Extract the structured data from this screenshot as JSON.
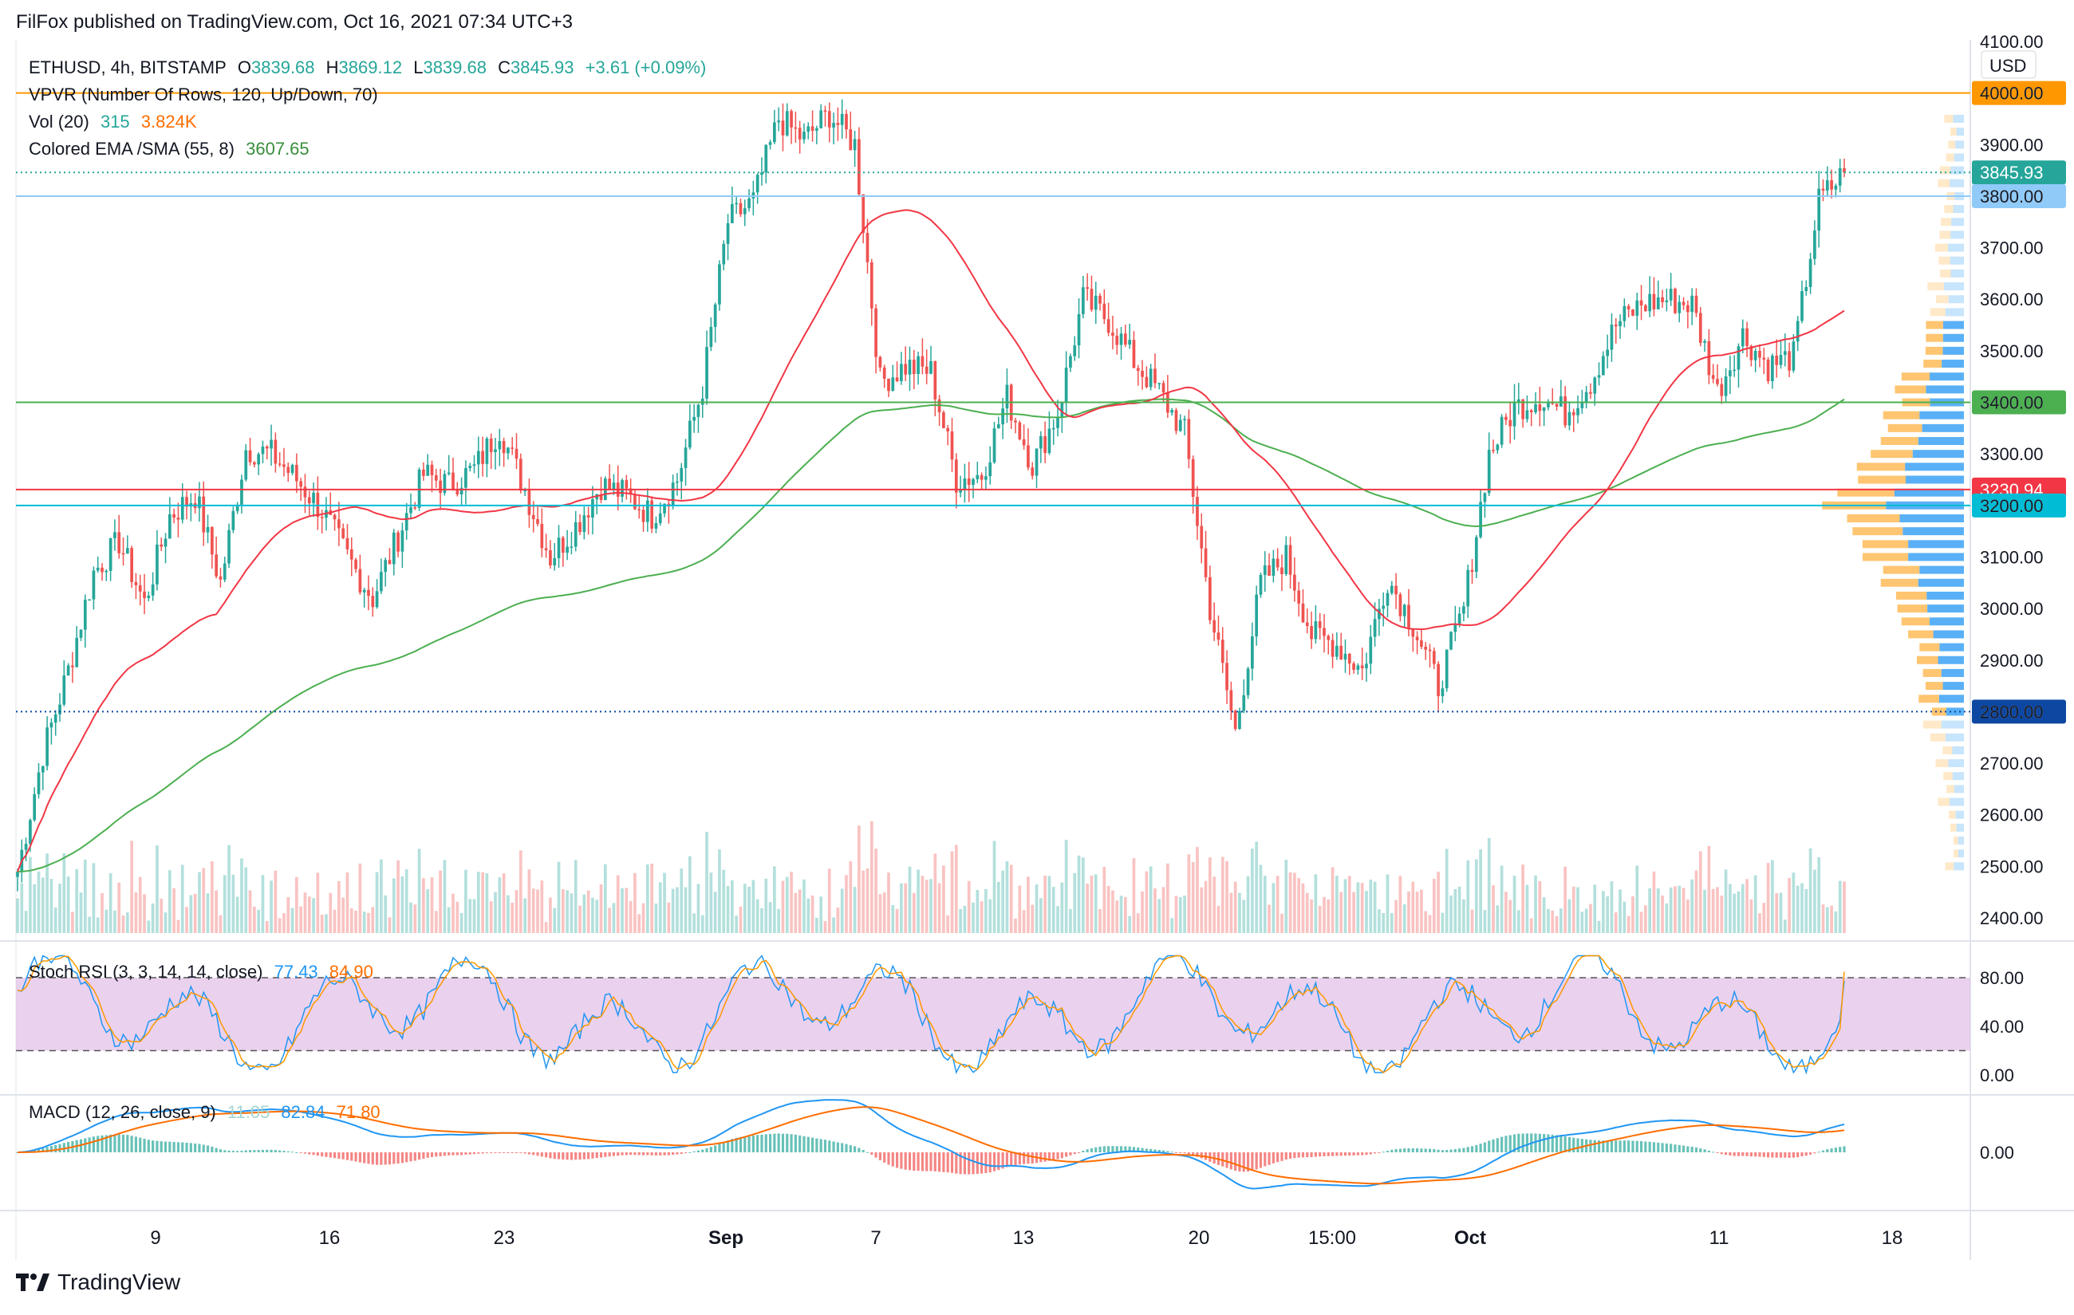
{
  "header": {
    "publisher": "FilFox published on TradingView.com, Oct 16, 2021 07:34 UTC+3"
  },
  "footer": {
    "brand": "TradingView",
    "logo_icon": "tradingview-logo-icon"
  },
  "currency": "USD",
  "colors": {
    "up": "#26a69a",
    "down": "#ef5350",
    "ema": "#f23645",
    "sma": "#4caf50",
    "stoch_k": "#2196f3",
    "stoch_d": "#ff9800",
    "stoch_band": "#e1bee7",
    "macd": "#2196f3",
    "signal": "#ff6d00",
    "level_4000": "#ff9800",
    "level_3800": "#90caf9",
    "level_3400": "#4caf50",
    "level_3230": "#f23645",
    "level_3200": "#00bcd4",
    "level_2800": "#0d47a1",
    "vpvr_up": "#2196f3",
    "vpvr_down": "#ffb74d"
  },
  "legend": {
    "symbol": "ETHUSD, 4h, BITSTAMP",
    "o_label": "O",
    "o_value": "3839.68",
    "h_label": "H",
    "h_value": "3869.12",
    "l_label": "L",
    "l_value": "3839.68",
    "c_label": "C",
    "c_value": "3845.93",
    "change": "+3.61 (+0.09%)",
    "vpvr": "VPVR (Number Of Rows, 120, Up/Down, 70)",
    "vol_label": "Vol (20)",
    "vol_value": "315",
    "vol_ma": "3.824K",
    "ema_label": "Colored EMA /SMA (55, 8)",
    "ema_value": "3607.65",
    "stoch_label": "Stoch RSI (3, 3, 14, 14, close)",
    "stoch_k": "77.43",
    "stoch_d": "84.90",
    "macd_label": "MACD (12, 26, close, 9)",
    "macd_hist": "11.05",
    "macd_value": "82.84",
    "macd_signal": "71.80"
  },
  "chart_data": [
    {
      "type": "candlestick",
      "title": "ETHUSD, 4h, BITSTAMP",
      "ylim": [
        2350,
        4100
      ],
      "y_ticks": [
        "4100.00",
        "4000.00",
        "3900.00",
        "3800.00",
        "3700.00",
        "3600.00",
        "3500.00",
        "3400.00",
        "3300.00",
        "3200.00",
        "3100.00",
        "3000.00",
        "2900.00",
        "2800.00",
        "2700.00",
        "2600.00",
        "2500.00",
        "2400.00"
      ],
      "x_ticks": [
        "9",
        "16",
        "23",
        "Sep",
        "7",
        "13",
        "20",
        "15:00",
        "Oct",
        "11",
        "18"
      ],
      "price_anchors": [
        [
          "Aug 4",
          2490
        ],
        [
          "Aug 5",
          2720
        ],
        [
          "Aug 6",
          2880
        ],
        [
          "Aug 7",
          3070
        ],
        [
          "Aug 8",
          3130
        ],
        [
          "Aug 9",
          3010
        ],
        [
          "Aug 10",
          3180
        ],
        [
          "Aug 11",
          3220
        ],
        [
          "Aug 12",
          3050
        ],
        [
          "Aug 13",
          3310
        ],
        [
          "Aug 14",
          3300
        ],
        [
          "Aug 15",
          3250
        ],
        [
          "Aug 16",
          3190
        ],
        [
          "Aug 17",
          3100
        ],
        [
          "Aug 18",
          3020
        ],
        [
          "Aug 19",
          3140
        ],
        [
          "Aug 20",
          3260
        ],
        [
          "Aug 21",
          3240
        ],
        [
          "Aug 22",
          3270
        ],
        [
          "Aug 23",
          3350
        ],
        [
          "Aug 24",
          3230
        ],
        [
          "Aug 25",
          3100
        ],
        [
          "Aug 26",
          3160
        ],
        [
          "Aug 27",
          3240
        ],
        [
          "Aug 28",
          3220
        ],
        [
          "Aug 29",
          3180
        ],
        [
          "Aug 30",
          3250
        ],
        [
          "Aug 31",
          3430
        ],
        [
          "Sep 1",
          3750
        ],
        [
          "Sep 2",
          3790
        ],
        [
          "Sep 3",
          3950
        ],
        [
          "Sep 4",
          3910
        ],
        [
          "Sep 5",
          3960
        ],
        [
          "Sep 6",
          3900
        ],
        [
          "Sep 7",
          3440
        ],
        [
          "Sep 8",
          3470
        ],
        [
          "Sep 9",
          3460
        ],
        [
          "Sep 10",
          3250
        ],
        [
          "Sep 11",
          3260
        ],
        [
          "Sep 12",
          3410
        ],
        [
          "Sep 13",
          3280
        ],
        [
          "Sep 14",
          3380
        ],
        [
          "Sep 15",
          3600
        ],
        [
          "Sep 16",
          3560
        ],
        [
          "Sep 17",
          3480
        ],
        [
          "Sep 18",
          3420
        ],
        [
          "Sep 19",
          3340
        ],
        [
          "Sep 20",
          3000
        ],
        [
          "Sep 21",
          2760
        ],
        [
          "Sep 22",
          3050
        ],
        [
          "Sep 23",
          3100
        ],
        [
          "Sep 24",
          2950
        ],
        [
          "Sep 25",
          2930
        ],
        [
          "Sep 26",
          2880
        ],
        [
          "Sep 27",
          3060
        ],
        [
          "Sep 28",
          2970
        ],
        [
          "Sep 29",
          2850
        ],
        [
          "Sep 30",
          3000
        ],
        [
          "Oct 1",
          3300
        ],
        [
          "Oct 2",
          3390
        ],
        [
          "Oct 3",
          3410
        ],
        [
          "Oct 4",
          3380
        ],
        [
          "Oct 5",
          3440
        ],
        [
          "Oct 6",
          3550
        ],
        [
          "Oct 7",
          3590
        ],
        [
          "Oct 8",
          3600
        ],
        [
          "Oct 9",
          3590
        ],
        [
          "Oct 10",
          3420
        ],
        [
          "Oct 11",
          3530
        ],
        [
          "Oct 12",
          3470
        ],
        [
          "Oct 13",
          3490
        ],
        [
          "Oct 14",
          3790
        ],
        [
          "Oct 15",
          3845.93
        ]
      ],
      "levels": [
        {
          "price": 4000.0,
          "label": "4000.00",
          "color_key": "level_4000",
          "style": "solid"
        },
        {
          "price": 3845.93,
          "label": "3845.93",
          "color_key": "up",
          "style": "dotted"
        },
        {
          "price": 3800.0,
          "label": "3800.00",
          "color_key": "level_3800",
          "style": "solid"
        },
        {
          "price": 3400.0,
          "label": "3400.00",
          "color_key": "level_3400",
          "style": "solid"
        },
        {
          "price": 3230.94,
          "label": "3230.94",
          "color_key": "level_3230",
          "style": "solid"
        },
        {
          "price": 3200.0,
          "label": "3200.00",
          "color_key": "level_3200",
          "style": "solid"
        },
        {
          "price": 2800.0,
          "label": "2800.00",
          "color_key": "level_2800",
          "style": "dotted"
        }
      ]
    },
    {
      "type": "line",
      "title": "Stoch RSI (3, 3, 14, 14, close)",
      "ylim": [
        0,
        100
      ],
      "y_ticks": [
        "80.00",
        "40.00",
        "0.00"
      ],
      "band": [
        20,
        80
      ]
    },
    {
      "type": "bar",
      "title": "MACD (12, 26, close, 9)",
      "y_ticks": [
        "0.00"
      ]
    }
  ]
}
